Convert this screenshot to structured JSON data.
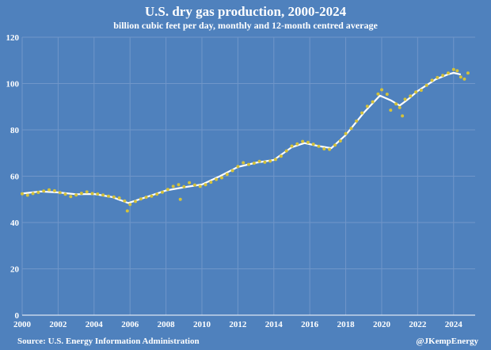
{
  "chart_data": {
    "type": "scatter",
    "title": "U.S. dry gas production, 2000-2024",
    "subtitle": "billion cubic feet per day, monthly and 12-month centred average",
    "source": "Source: U.S. Energy Information Administration",
    "credit": "@JKempEnergy",
    "xlim": [
      2000,
      2025.2
    ],
    "ylim": [
      0,
      120
    ],
    "grid": true,
    "x_ticks": [
      "2000",
      "2002",
      "2004",
      "2006",
      "2008",
      "2010",
      "2012",
      "2014",
      "2016",
      "2018",
      "2020",
      "2022",
      "2024"
    ],
    "y_ticks": [
      "0",
      "20",
      "40",
      "60",
      "80",
      "100",
      "120"
    ],
    "colors": {
      "background": "#4f81bd",
      "grid": "#7096c9",
      "monthly": "#d4c23a",
      "average": "#ffffff"
    },
    "series": [
      {
        "style": "monthly-dots",
        "points": [
          [
            2000.0,
            52.4
          ],
          [
            2000.3,
            51.8
          ],
          [
            2000.6,
            52.5
          ],
          [
            2000.9,
            53.0
          ],
          [
            2001.2,
            53.6
          ],
          [
            2001.5,
            54.1
          ],
          [
            2001.8,
            53.7
          ],
          [
            2002.1,
            52.9
          ],
          [
            2002.4,
            52.2
          ],
          [
            2002.7,
            51.2
          ],
          [
            2003.0,
            51.9
          ],
          [
            2003.3,
            52.6
          ],
          [
            2003.6,
            53.2
          ],
          [
            2003.9,
            52.5
          ],
          [
            2004.2,
            52.3
          ],
          [
            2004.5,
            51.9
          ],
          [
            2004.8,
            51.4
          ],
          [
            2005.1,
            51.0
          ],
          [
            2005.4,
            50.6
          ],
          [
            2005.7,
            49.3
          ],
          [
            2005.85,
            45.0
          ],
          [
            2006.0,
            47.8
          ],
          [
            2006.3,
            49.1
          ],
          [
            2006.6,
            50.2
          ],
          [
            2006.9,
            50.9
          ],
          [
            2007.2,
            51.4
          ],
          [
            2007.5,
            52.2
          ],
          [
            2007.8,
            53.1
          ],
          [
            2008.1,
            54.3
          ],
          [
            2008.4,
            55.6
          ],
          [
            2008.7,
            56.3
          ],
          [
            2008.8,
            50.0
          ],
          [
            2009.0,
            55.5
          ],
          [
            2009.3,
            57.2
          ],
          [
            2009.6,
            56.2
          ],
          [
            2009.9,
            55.6
          ],
          [
            2010.2,
            56.3
          ],
          [
            2010.5,
            57.4
          ],
          [
            2010.8,
            58.6
          ],
          [
            2011.1,
            59.3
          ],
          [
            2011.4,
            60.8
          ],
          [
            2011.7,
            62.4
          ],
          [
            2012.0,
            64.2
          ],
          [
            2012.3,
            65.8
          ],
          [
            2012.6,
            65.1
          ],
          [
            2012.9,
            65.6
          ],
          [
            2013.2,
            66.4
          ],
          [
            2013.5,
            66.0
          ],
          [
            2013.8,
            66.5
          ],
          [
            2014.1,
            67.2
          ],
          [
            2014.4,
            68.6
          ],
          [
            2014.7,
            70.9
          ],
          [
            2015.0,
            73.0
          ],
          [
            2015.3,
            73.9
          ],
          [
            2015.6,
            75.0
          ],
          [
            2015.9,
            74.6
          ],
          [
            2016.2,
            73.8
          ],
          [
            2016.5,
            72.9
          ],
          [
            2016.8,
            71.8
          ],
          [
            2017.1,
            71.6
          ],
          [
            2017.4,
            73.4
          ],
          [
            2017.7,
            75.2
          ],
          [
            2018.0,
            78.4
          ],
          [
            2018.3,
            80.6
          ],
          [
            2018.6,
            83.8
          ],
          [
            2018.9,
            87.3
          ],
          [
            2019.2,
            90.2
          ],
          [
            2019.5,
            92.1
          ],
          [
            2019.8,
            95.5
          ],
          [
            2020.0,
            97.3
          ],
          [
            2020.3,
            95.4
          ],
          [
            2020.5,
            88.5
          ],
          [
            2020.8,
            91.2
          ],
          [
            2021.0,
            89.6
          ],
          [
            2021.15,
            86.0
          ],
          [
            2021.3,
            93.2
          ],
          [
            2021.6,
            94.6
          ],
          [
            2021.9,
            96.3
          ],
          [
            2022.2,
            97.1
          ],
          [
            2022.5,
            99.2
          ],
          [
            2022.8,
            101.4
          ],
          [
            2023.1,
            102.6
          ],
          [
            2023.4,
            103.5
          ],
          [
            2023.7,
            104.5
          ],
          [
            2024.0,
            106.1
          ],
          [
            2024.2,
            105.5
          ],
          [
            2024.4,
            102.8
          ],
          [
            2024.6,
            101.9
          ],
          [
            2024.8,
            104.5
          ]
        ]
      },
      {
        "style": "centred-average-line",
        "points": [
          [
            2000.0,
            52.5
          ],
          [
            2001.0,
            53.4
          ],
          [
            2002.0,
            53.0
          ],
          [
            2003.0,
            52.2
          ],
          [
            2004.0,
            52.3
          ],
          [
            2005.0,
            51.0
          ],
          [
            2005.9,
            48.4
          ],
          [
            2007.0,
            51.2
          ],
          [
            2008.0,
            53.8
          ],
          [
            2009.0,
            55.2
          ],
          [
            2010.0,
            56.4
          ],
          [
            2011.0,
            60.0
          ],
          [
            2012.0,
            64.0
          ],
          [
            2013.0,
            65.8
          ],
          [
            2014.0,
            67.0
          ],
          [
            2015.0,
            72.5
          ],
          [
            2015.7,
            74.3
          ],
          [
            2016.5,
            73.0
          ],
          [
            2017.2,
            72.1
          ],
          [
            2018.0,
            77.8
          ],
          [
            2019.0,
            87.4
          ],
          [
            2019.9,
            94.8
          ],
          [
            2020.5,
            92.8
          ],
          [
            2021.0,
            90.5
          ],
          [
            2021.5,
            93.4
          ],
          [
            2022.0,
            96.8
          ],
          [
            2023.0,
            101.8
          ],
          [
            2023.7,
            104.0
          ],
          [
            2024.0,
            104.6
          ],
          [
            2024.4,
            103.9
          ]
        ]
      }
    ]
  }
}
